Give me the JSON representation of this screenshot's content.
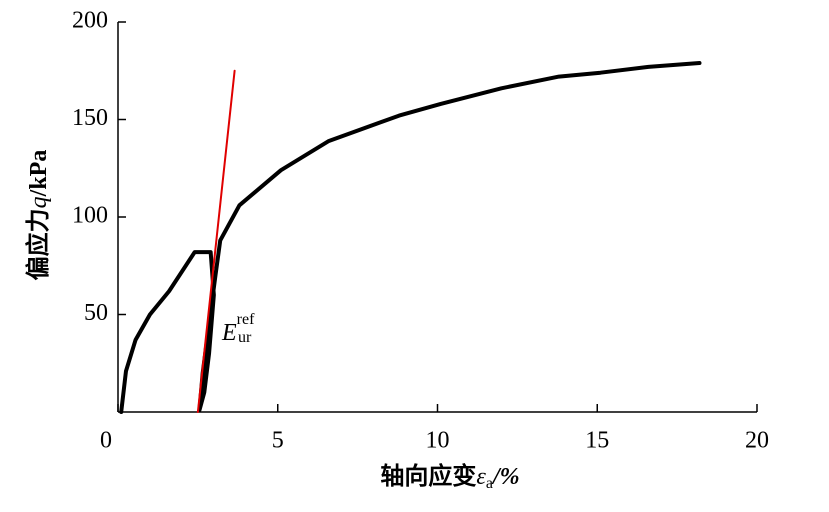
{
  "chart_data": {
    "type": "line",
    "xlabel": {
      "text": "轴向应变",
      "symbol": "ε",
      "subscript": "a",
      "unit": "/%"
    },
    "ylabel": {
      "text": "偏应力",
      "symbol": "q",
      "unit": "/kPa"
    },
    "annotation": {
      "symbol": "E",
      "subscript": "ur",
      "superscript": "ref"
    },
    "xlim": [
      0,
      20
    ],
    "ylim": [
      0,
      200
    ],
    "xticks": [
      0,
      5,
      10,
      15,
      20
    ],
    "yticks": [
      50,
      100,
      150,
      200
    ],
    "series": [
      {
        "color": "#000000",
        "x": [
          0.1,
          0.25,
          0.55,
          1.0,
          1.6,
          2.4,
          2.9,
          3.0,
          2.85,
          2.7,
          2.55,
          2.65,
          2.85,
          3.05,
          3.2,
          3.8,
          5.1,
          6.6,
          8.8,
          10.1,
          12,
          13.8,
          15.1,
          16.6,
          18.2
        ],
        "values": [
          0,
          21,
          37,
          50,
          62,
          82,
          82,
          60,
          30,
          10,
          1,
          20,
          45,
          70,
          88,
          106,
          124,
          139,
          152,
          158,
          166,
          172,
          174,
          177,
          179
        ]
      },
      {
        "color": "#e00000",
        "x": [
          2.5,
          3.65
        ],
        "values": [
          0,
          175
        ]
      }
    ]
  }
}
